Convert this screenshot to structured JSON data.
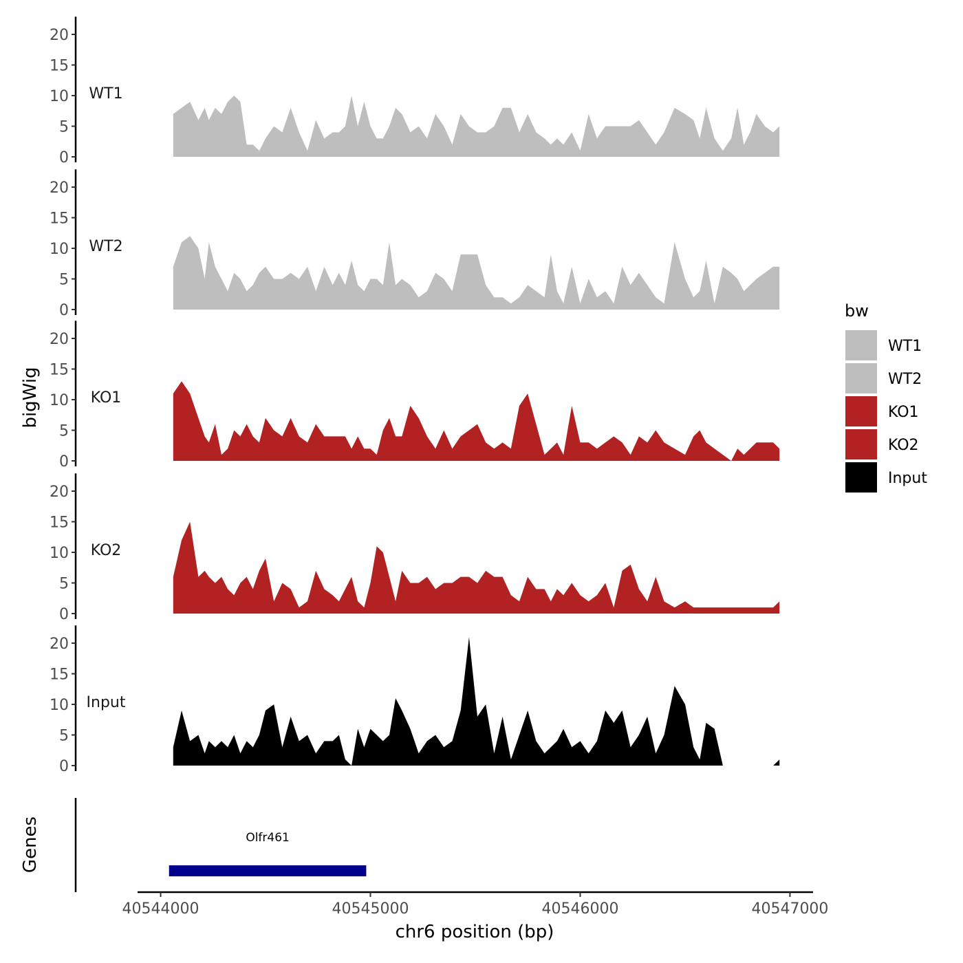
{
  "chart_data": {
    "type": "area",
    "xlabel": "chr6 position (bp)",
    "ylabel": "bigWig",
    "genes_label": "Genes",
    "x_ticks": [
      40544000,
      40545000,
      40546000,
      40547000
    ],
    "x_tick_labels": [
      "40544000",
      "40545000",
      "40546000",
      "40547000"
    ],
    "xlim": [
      40543890,
      40547110
    ],
    "ylim": [
      0,
      22
    ],
    "y_ticks": [
      0,
      5,
      10,
      15,
      20
    ],
    "y_tick_labels": [
      "0",
      "5",
      "10",
      "15",
      "20"
    ],
    "legend": {
      "title": "bw",
      "position": "right",
      "entries": [
        {
          "label": "WT1",
          "color": "#BEBEBE"
        },
        {
          "label": "WT2",
          "color": "#BEBEBE"
        },
        {
          "label": "KO1",
          "color": "#B22222"
        },
        {
          "label": "KO2",
          "color": "#B22222"
        },
        {
          "label": "Input",
          "color": "#000000"
        }
      ]
    },
    "series": [
      {
        "name": "WT1",
        "color": "#BEBEBE",
        "x": [
          40544060,
          40544100,
          40544140,
          40544180,
          40544210,
          40544230,
          40544260,
          40544290,
          40544320,
          40544350,
          40544380,
          40544410,
          40544440,
          40544470,
          40544500,
          40544540,
          40544580,
          40544620,
          40544660,
          40544700,
          40544740,
          40544780,
          40544820,
          40544850,
          40544880,
          40544910,
          40544940,
          40544970,
          40545000,
          40545030,
          40545060,
          40545090,
          40545120,
          40545150,
          40545190,
          40545230,
          40545270,
          40545310,
          40545350,
          40545390,
          40545430,
          40545470,
          40545510,
          40545550,
          40545590,
          40545630,
          40545670,
          40545710,
          40545750,
          40545790,
          40545830,
          40545860,
          40545890,
          40545920,
          40545960,
          40546000,
          40546040,
          40546080,
          40546120,
          40546160,
          40546200,
          40546240,
          40546280,
          40546320,
          40546360,
          40546400,
          40546450,
          40546500,
          40546540,
          40546570,
          40546600,
          40546640,
          40546680,
          40546720,
          40546750,
          40546780,
          40546810,
          40546840,
          40546880,
          40546920,
          40546950
        ],
        "values": [
          7,
          8,
          9,
          6,
          8,
          6,
          8,
          7,
          9,
          10,
          9,
          2,
          2,
          1,
          3,
          5,
          4,
          8,
          4,
          1,
          6,
          3,
          4,
          4,
          5,
          10,
          5,
          9,
          5,
          3,
          3,
          5,
          8,
          7,
          4,
          5,
          3,
          7,
          5,
          2,
          7,
          5,
          4,
          4,
          5,
          8,
          8,
          4,
          7,
          4,
          3,
          2,
          3,
          2,
          4,
          1,
          7,
          3,
          5,
          5,
          5,
          5,
          6,
          4,
          2,
          4,
          8,
          7,
          6,
          3,
          8,
          3,
          1,
          3,
          8,
          2,
          4,
          7,
          5,
          4,
          5
        ],
        "label": "WT1"
      },
      {
        "name": "WT2",
        "color": "#BEBEBE",
        "x": [
          40544060,
          40544100,
          40544140,
          40544180,
          40544210,
          40544230,
          40544260,
          40544290,
          40544320,
          40544350,
          40544380,
          40544410,
          40544440,
          40544470,
          40544500,
          40544540,
          40544580,
          40544620,
          40544660,
          40544700,
          40544740,
          40544780,
          40544820,
          40544850,
          40544880,
          40544910,
          40544940,
          40544970,
          40545000,
          40545030,
          40545060,
          40545090,
          40545120,
          40545150,
          40545190,
          40545230,
          40545270,
          40545310,
          40545350,
          40545390,
          40545430,
          40545470,
          40545510,
          40545550,
          40545590,
          40545630,
          40545670,
          40545710,
          40545750,
          40545790,
          40545830,
          40545860,
          40545890,
          40545920,
          40545960,
          40546000,
          40546040,
          40546080,
          40546120,
          40546160,
          40546200,
          40546240,
          40546280,
          40546320,
          40546360,
          40546400,
          40546450,
          40546500,
          40546540,
          40546570,
          40546600,
          40546640,
          40546680,
          40546720,
          40546750,
          40546780,
          40546810,
          40546840,
          40546880,
          40546920,
          40546950
        ],
        "values": [
          7,
          11,
          12,
          10,
          5,
          11,
          7,
          5,
          3,
          6,
          5,
          3,
          4,
          6,
          7,
          5,
          5,
          6,
          5,
          7,
          3,
          7,
          4,
          6,
          4,
          8,
          4,
          3,
          5,
          5,
          4,
          11,
          4,
          5,
          4,
          2,
          3,
          6,
          5,
          3,
          9,
          9,
          9,
          4,
          2,
          2,
          1,
          2,
          4,
          3,
          2,
          9,
          3,
          1,
          7,
          1,
          5,
          2,
          3,
          1,
          7,
          4,
          6,
          4,
          2,
          1,
          11,
          5,
          2,
          3,
          8,
          1,
          7,
          6,
          5,
          3,
          4,
          5,
          6,
          7,
          7
        ],
        "label": "WT2"
      },
      {
        "name": "KO1",
        "color": "#B22222",
        "x": [
          40544060,
          40544100,
          40544140,
          40544180,
          40544210,
          40544230,
          40544260,
          40544290,
          40544320,
          40544350,
          40544380,
          40544410,
          40544440,
          40544470,
          40544500,
          40544540,
          40544580,
          40544620,
          40544660,
          40544700,
          40544740,
          40544780,
          40544820,
          40544850,
          40544880,
          40544910,
          40544940,
          40544970,
          40545000,
          40545030,
          40545060,
          40545090,
          40545120,
          40545150,
          40545190,
          40545230,
          40545270,
          40545310,
          40545350,
          40545390,
          40545430,
          40545470,
          40545510,
          40545550,
          40545590,
          40545630,
          40545670,
          40545710,
          40545750,
          40545790,
          40545830,
          40545860,
          40545890,
          40545920,
          40545960,
          40546000,
          40546040,
          40546080,
          40546120,
          40546160,
          40546200,
          40546240,
          40546280,
          40546320,
          40546360,
          40546400,
          40546450,
          40546500,
          40546540,
          40546570,
          40546600,
          40546640,
          40546680,
          40546720,
          40546750,
          40546780,
          40546810,
          40546840,
          40546880,
          40546920,
          40546950
        ],
        "values": [
          11,
          13,
          11,
          7,
          4,
          3,
          6,
          1,
          2,
          5,
          4,
          6,
          4,
          3,
          7,
          5,
          4,
          7,
          4,
          3,
          6,
          4,
          4,
          4,
          4,
          2,
          4,
          2,
          2,
          1,
          5,
          7,
          4,
          4,
          9,
          7,
          4,
          2,
          5,
          2,
          4,
          5,
          6,
          3,
          2,
          3,
          2,
          9,
          11,
          6,
          1,
          2,
          3,
          1,
          9,
          3,
          3,
          2,
          3,
          4,
          3,
          1,
          4,
          3,
          5,
          3,
          2,
          1,
          4,
          5,
          3,
          2,
          1,
          0,
          2,
          1,
          2,
          3,
          3,
          3,
          2
        ],
        "label": "KO1"
      },
      {
        "name": "KO2",
        "color": "#B22222",
        "x": [
          40544060,
          40544100,
          40544140,
          40544180,
          40544210,
          40544230,
          40544260,
          40544290,
          40544320,
          40544350,
          40544380,
          40544410,
          40544440,
          40544470,
          40544500,
          40544540,
          40544580,
          40544620,
          40544660,
          40544700,
          40544740,
          40544780,
          40544820,
          40544850,
          40544880,
          40544910,
          40544940,
          40544970,
          40545000,
          40545030,
          40545060,
          40545090,
          40545120,
          40545150,
          40545190,
          40545230,
          40545270,
          40545310,
          40545350,
          40545390,
          40545430,
          40545470,
          40545510,
          40545550,
          40545590,
          40545630,
          40545670,
          40545710,
          40545750,
          40545790,
          40545830,
          40545860,
          40545890,
          40545920,
          40545960,
          40546000,
          40546040,
          40546080,
          40546120,
          40546160,
          40546200,
          40546240,
          40546280,
          40546320,
          40546360,
          40546400,
          40546450,
          40546500,
          40546540,
          40546570,
          40546600,
          40546640,
          40546680,
          40546720,
          40546750,
          40546780,
          40546810,
          40546840,
          40546880,
          40546920,
          40546950
        ],
        "values": [
          6,
          12,
          15,
          6,
          7,
          6,
          5,
          6,
          4,
          3,
          5,
          6,
          4,
          7,
          9,
          2,
          5,
          4,
          1,
          2,
          7,
          4,
          3,
          2,
          4,
          6,
          2,
          1,
          5,
          11,
          10,
          6,
          2,
          7,
          5,
          5,
          6,
          4,
          5,
          5,
          6,
          6,
          5,
          7,
          6,
          6,
          3,
          2,
          6,
          4,
          4,
          2,
          4,
          3,
          5,
          3,
          2,
          3,
          5,
          1,
          7,
          8,
          4,
          2,
          6,
          2,
          1,
          2,
          1,
          1,
          1,
          1,
          1,
          1,
          1,
          1,
          1,
          1,
          1,
          1,
          2
        ],
        "label": "KO2"
      },
      {
        "name": "Input",
        "color": "#000000",
        "x": [
          40544060,
          40544100,
          40544140,
          40544180,
          40544210,
          40544230,
          40544260,
          40544290,
          40544320,
          40544350,
          40544380,
          40544410,
          40544440,
          40544470,
          40544500,
          40544540,
          40544580,
          40544620,
          40544660,
          40544700,
          40544740,
          40544780,
          40544820,
          40544850,
          40544880,
          40544910,
          40544940,
          40544970,
          40545000,
          40545030,
          40545060,
          40545090,
          40545120,
          40545150,
          40545190,
          40545230,
          40545270,
          40545310,
          40545350,
          40545390,
          40545430,
          40545470,
          40545510,
          40545550,
          40545590,
          40545630,
          40545670,
          40545710,
          40545750,
          40545790,
          40545830,
          40545860,
          40545890,
          40545920,
          40545960,
          40546000,
          40546040,
          40546080,
          40546120,
          40546160,
          40546200,
          40546240,
          40546280,
          40546320,
          40546360,
          40546400,
          40546450,
          40546500,
          40546540,
          40546570,
          40546600,
          40546640,
          40546680,
          40546720,
          40546750,
          40546780,
          40546810,
          40546840,
          40546880,
          40546920,
          40546950
        ],
        "values": [
          3,
          9,
          4,
          5,
          2,
          4,
          3,
          4,
          3,
          5,
          2,
          4,
          3,
          5,
          9,
          10,
          3,
          8,
          4,
          5,
          2,
          4,
          4,
          5,
          1,
          0,
          6,
          3,
          6,
          5,
          4,
          5,
          11,
          9,
          6,
          2,
          4,
          5,
          3,
          4,
          9,
          21,
          8,
          10,
          2,
          8,
          1,
          5,
          9,
          4,
          2,
          3,
          4,
          6,
          3,
          4,
          2,
          4,
          9,
          7,
          9,
          3,
          5,
          8,
          2,
          5,
          13,
          10,
          3,
          1,
          7,
          6,
          0,
          0,
          0,
          0,
          0,
          0,
          0,
          0,
          1
        ],
        "label": "Input"
      }
    ],
    "genes": [
      {
        "name": "Olfr461",
        "start": 40544040,
        "end": 40544980,
        "color": "#00008B"
      }
    ]
  }
}
